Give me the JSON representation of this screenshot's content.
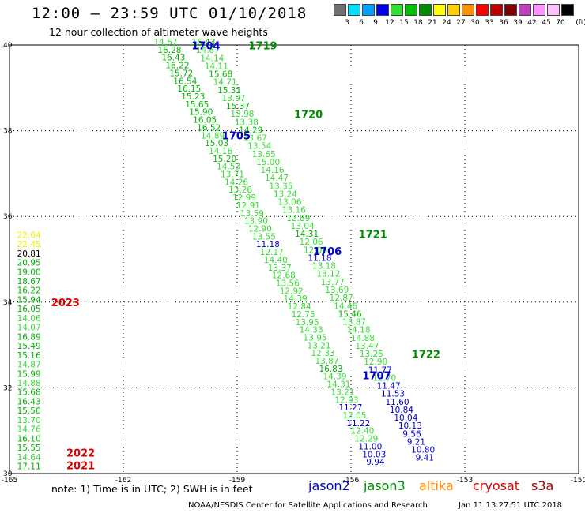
{
  "header": {
    "title": "12:00 – 23:59 UTC 01/10/2018",
    "subtitle": "12 hour collection of altimeter wave heights"
  },
  "legend": {
    "unit": "(ft)",
    "bins": [
      {
        "color": "#707070",
        "label": "3"
      },
      {
        "color": "#00e0ff",
        "label": "6"
      },
      {
        "color": "#00a0ff",
        "label": "9"
      },
      {
        "color": "#0000ee",
        "label": "12"
      },
      {
        "color": "#30e030",
        "label": "15"
      },
      {
        "color": "#00c000",
        "label": "18"
      },
      {
        "color": "#008c00",
        "label": "21"
      },
      {
        "color": "#ffff00",
        "label": "24"
      },
      {
        "color": "#ffd000",
        "label": "27"
      },
      {
        "color": "#ff9000",
        "label": "30"
      },
      {
        "color": "#ff0000",
        "label": "33"
      },
      {
        "color": "#c00000",
        "label": "36"
      },
      {
        "color": "#800000",
        "label": "39"
      },
      {
        "color": "#c040c0",
        "label": "42"
      },
      {
        "color": "#ff90ff",
        "label": "45"
      },
      {
        "color": "#ffc0ff",
        "label": "70"
      },
      {
        "color": "#000000",
        "label": ""
      }
    ]
  },
  "colors": {
    "jason2": "#0000cc",
    "jason3": "#008c00",
    "altika": "#ff8c00",
    "cryosat": "#dd0000",
    "s3a": "#aa0000",
    "light_green": "#33dd33",
    "mid_green": "#00b400",
    "yellow": "#f0f000"
  },
  "footer": {
    "note": "note: 1) Time is in UTC; 2) SWH is in feet",
    "satellites": {
      "jason2": "jason2",
      "jason3": "jason3",
      "altika": "altika",
      "cryosat": "cryosat",
      "s3a": "s3a"
    },
    "credit": "NOAA/NESDIS Center for Satellite Applications and Research",
    "timestamp": "Jan 11 13:27:51 UTC 2018"
  },
  "chart_data": {
    "type": "scatter",
    "title": "12:00 – 23:59 UTC 01/10/2018",
    "subtitle": "12 hour collection of altimeter wave heights",
    "xlim": [
      -165,
      -150
    ],
    "ylim": [
      30,
      40
    ],
    "x_ticks": [
      "-165",
      "-162",
      "-159",
      "-156",
      "-153",
      "-150"
    ],
    "y_ticks": [
      "30",
      "32",
      "34",
      "36",
      "38",
      "40"
    ],
    "grid": true,
    "tracks": [
      {
        "satellite": "jason2",
        "x_top": -161.2,
        "x_bottom": -155.6,
        "y_top": 40,
        "y_bottom": 30.2,
        "values": [
          "14.67",
          "16.28",
          "16.43",
          "16.22",
          "15.72",
          "16.54",
          "16.15",
          "15.23",
          "15.65",
          "15.90",
          "16.05",
          "16.52",
          "14.89",
          "15.03",
          "14.16",
          "15.20",
          "14.53",
          "13.71",
          "14.26",
          "13.26",
          "12.99",
          "12.91",
          "13.59",
          "13.90",
          "12.90",
          "13.55",
          "11.18",
          "12.17",
          "14.40",
          "13.37",
          "12.68",
          "13.56",
          "12.92",
          "14.39",
          "12.84",
          "12.75",
          "13.95",
          "14.33",
          "13.95",
          "13.21",
          "12.33",
          "13.87",
          "16.83",
          "14.39",
          "14.31",
          "13.21",
          "12.93",
          "11.27",
          "12.05",
          "11.22",
          "12.40",
          "12.29",
          "11.00",
          "10.03",
          "9.94"
        ],
        "colors": [
          "l",
          "m",
          "m",
          "m",
          "m",
          "m",
          "m",
          "m",
          "m",
          "m",
          "m",
          "m",
          "l",
          "m",
          "l",
          "m",
          "l",
          "l",
          "l",
          "l",
          "l",
          "l",
          "l",
          "l",
          "l",
          "l",
          "b",
          "l",
          "l",
          "l",
          "l",
          "l",
          "l",
          "l",
          "l",
          "l",
          "l",
          "l",
          "l",
          "l",
          "l",
          "l",
          "m",
          "l",
          "l",
          "l",
          "l",
          "b",
          "l",
          "b",
          "l",
          "l",
          "b",
          "b",
          "b"
        ]
      },
      {
        "satellite": "jason3",
        "x_top": -160.2,
        "x_bottom": -154.3,
        "y_top": 40,
        "y_bottom": 30.3,
        "values": [
          "16.43",
          "14.87",
          "14.14",
          "14.11",
          "15.68",
          "14.71",
          "15.31",
          "13.97",
          "15.37",
          "13.98",
          "13.38",
          "14.29",
          "13.67",
          "13.54",
          "13.65",
          "15.00",
          "14.16",
          "14.47",
          "13.35",
          "13.24",
          "13.06",
          "13.16",
          "12.89",
          "13.04",
          "14.31",
          "12.06",
          "12.06",
          "11.18",
          "13.18",
          "13.12",
          "13.77",
          "13.69",
          "12.87",
          "14.46",
          "15.46",
          "13.87",
          "14.18",
          "14.88",
          "13.47",
          "13.25",
          "12.90",
          "11.77",
          "12.70",
          "11.47",
          "11.53",
          "11.60",
          "10.84",
          "10.04",
          "10.13",
          "9.56",
          "9.21",
          "10.80",
          "9.41"
        ],
        "colors": [
          "m",
          "l",
          "l",
          "l",
          "m",
          "l",
          "m",
          "l",
          "m",
          "l",
          "l",
          "m",
          "l",
          "l",
          "l",
          "l",
          "l",
          "l",
          "l",
          "l",
          "l",
          "l",
          "l",
          "l",
          "m",
          "l",
          "l",
          "b",
          "l",
          "l",
          "l",
          "l",
          "l",
          "l",
          "m",
          "l",
          "l",
          "l",
          "l",
          "l",
          "l",
          "b",
          "l",
          "b",
          "b",
          "b",
          "b",
          "b",
          "b",
          "b",
          "b",
          "b",
          "b"
        ]
      },
      {
        "satellite": "cryosat",
        "x_top": -164.8,
        "x_bottom": -164.8,
        "y_top": 35.5,
        "y_bottom": 30.1,
        "values": [
          "22.04",
          "22.45",
          "20.81",
          "20.95",
          "19.00",
          "18.67",
          "16.22",
          "15.94",
          "16.05",
          "14.06",
          "14.07",
          "16.89",
          "15.49",
          "15.16",
          "14.87",
          "15.99",
          "14.88",
          "15.68",
          "16.43",
          "15.50",
          "13.70",
          "14.76",
          "16.10",
          "15.55",
          "14.64",
          "17.11"
        ],
        "colors": [
          "y",
          "y",
          "k",
          "m",
          "m",
          "m",
          "m",
          "m",
          "m",
          "l",
          "l",
          "m",
          "m",
          "m",
          "l",
          "m",
          "l",
          "m",
          "m",
          "m",
          "l",
          "l",
          "m",
          "m",
          "l",
          "m"
        ]
      }
    ],
    "pass_labels": [
      {
        "text": "1704",
        "satellite": "jason2",
        "x": -160.2,
        "y": 39.9
      },
      {
        "text": "1719",
        "satellite": "jason3",
        "x": -158.7,
        "y": 39.9
      },
      {
        "text": "1720",
        "satellite": "jason3",
        "x": -157.5,
        "y": 38.3
      },
      {
        "text": "1705",
        "satellite": "jason2",
        "x": -159.4,
        "y": 37.8
      },
      {
        "text": "1721",
        "satellite": "jason3",
        "x": -155.8,
        "y": 35.5
      },
      {
        "text": "1706",
        "satellite": "jason2",
        "x": -157.0,
        "y": 35.1
      },
      {
        "text": "2023",
        "satellite": "cryosat",
        "x": -163.9,
        "y": 33.9
      },
      {
        "text": "1722",
        "satellite": "jason3",
        "x": -154.4,
        "y": 32.7
      },
      {
        "text": "1707",
        "satellite": "jason2",
        "x": -155.7,
        "y": 32.2
      },
      {
        "text": "2022",
        "satellite": "cryosat",
        "x": -163.5,
        "y": 30.4
      },
      {
        "text": "2021",
        "satellite": "cryosat",
        "x": -163.5,
        "y": 30.1
      }
    ]
  }
}
